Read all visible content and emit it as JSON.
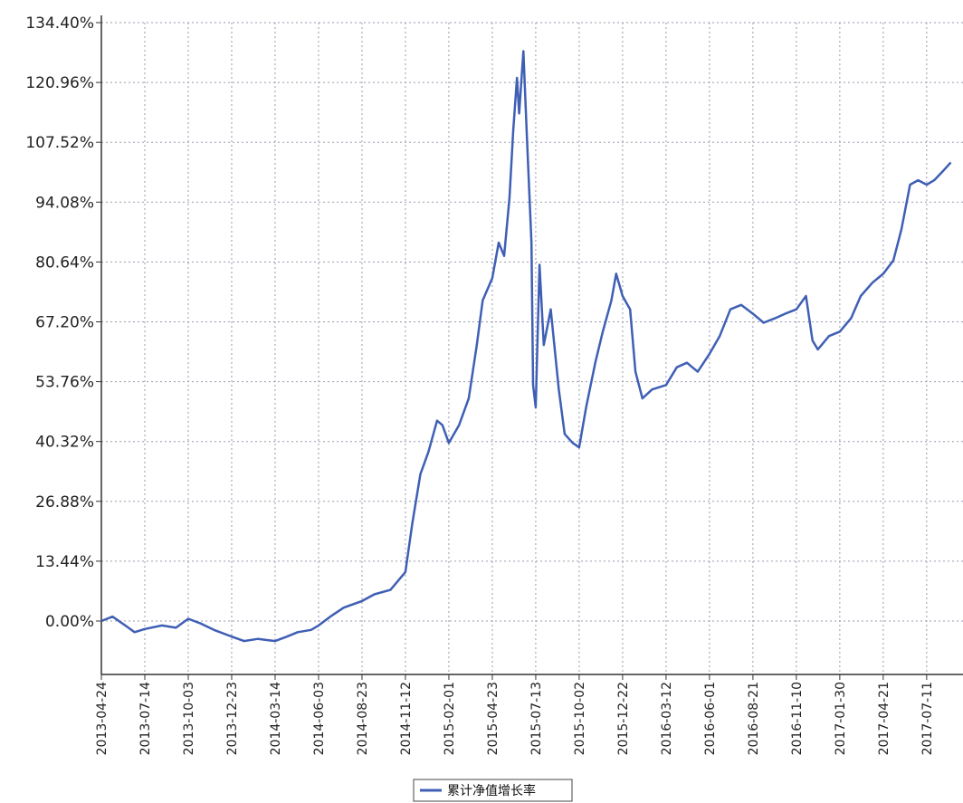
{
  "chart_data": {
    "type": "line",
    "title": "",
    "xlabel": "",
    "ylabel": "",
    "ylim": [
      -12,
      134.4
    ],
    "y_ticks": [
      "134.40%",
      "120.96%",
      "107.52%",
      "94.08%",
      "80.64%",
      "67.20%",
      "53.76%",
      "40.32%",
      "26.88%",
      "13.44%",
      "0.00%"
    ],
    "x_ticks": [
      "2013-04-24",
      "2013-07-14",
      "2013-10-03",
      "2013-12-23",
      "2014-03-14",
      "2014-06-03",
      "2014-08-23",
      "2014-11-12",
      "2015-02-01",
      "2015-04-23",
      "2015-07-13",
      "2015-10-02",
      "2015-12-22",
      "2016-03-12",
      "2016-06-01",
      "2016-08-21",
      "2016-11-10",
      "2017-01-30",
      "2017-04-21",
      "2017-07-11"
    ],
    "grid": true,
    "legend_position": "bottom-center",
    "colors": {
      "line": "#3f5fb5",
      "grid": "#9a9ab0",
      "axis": "#333333"
    },
    "series": [
      {
        "name": "累计净值增长率",
        "x": [
          "2013-04-24",
          "2013-05-15",
          "2013-06-10",
          "2013-06-25",
          "2013-07-14",
          "2013-08-15",
          "2013-09-10",
          "2013-10-03",
          "2013-10-25",
          "2013-11-20",
          "2013-12-23",
          "2014-01-15",
          "2014-02-10",
          "2014-03-14",
          "2014-04-05",
          "2014-04-25",
          "2014-05-20",
          "2014-06-03",
          "2014-06-25",
          "2014-07-20",
          "2014-08-23",
          "2014-09-15",
          "2014-10-15",
          "2014-11-12",
          "2014-11-25",
          "2014-12-10",
          "2014-12-25",
          "2015-01-10",
          "2015-01-20",
          "2015-02-01",
          "2015-02-20",
          "2015-03-10",
          "2015-03-25",
          "2015-04-05",
          "2015-04-23",
          "2015-05-05",
          "2015-05-15",
          "2015-05-25",
          "2015-06-01",
          "2015-06-08",
          "2015-06-12",
          "2015-06-20",
          "2015-06-26",
          "2015-07-05",
          "2015-07-08",
          "2015-07-13",
          "2015-07-20",
          "2015-07-28",
          "2015-08-10",
          "2015-08-25",
          "2015-09-05",
          "2015-09-20",
          "2015-10-02",
          "2015-10-15",
          "2015-11-01",
          "2015-11-15",
          "2015-12-01",
          "2015-12-10",
          "2015-12-22",
          "2016-01-05",
          "2016-01-15",
          "2016-01-28",
          "2016-02-15",
          "2016-03-12",
          "2016-04-01",
          "2016-04-20",
          "2016-05-10",
          "2016-06-01",
          "2016-06-20",
          "2016-07-10",
          "2016-07-30",
          "2016-08-21",
          "2016-09-10",
          "2016-10-01",
          "2016-10-20",
          "2016-11-10",
          "2016-11-28",
          "2016-12-10",
          "2016-12-20",
          "2017-01-10",
          "2017-01-30",
          "2017-02-20",
          "2017-03-10",
          "2017-04-01",
          "2017-04-21",
          "2017-05-10",
          "2017-05-25",
          "2017-06-10",
          "2017-06-25",
          "2017-07-11",
          "2017-07-25",
          "2017-08-10",
          "2017-08-25"
        ],
        "values": [
          0.0,
          1.0,
          -1.2,
          -2.5,
          -1.8,
          -1.0,
          -1.5,
          0.5,
          -0.5,
          -2.0,
          -3.5,
          -4.5,
          -4.0,
          -4.5,
          -3.5,
          -2.5,
          -2.0,
          -1.0,
          1.0,
          3.0,
          4.5,
          6.0,
          7.0,
          11.0,
          22.0,
          33.0,
          38.0,
          45.0,
          44.0,
          40.0,
          44.0,
          50.0,
          62.0,
          72.0,
          77.0,
          85.0,
          82.0,
          95.0,
          110.0,
          122.0,
          114.0,
          128.0,
          110.0,
          85.0,
          53.0,
          48.0,
          80.0,
          62.0,
          70.0,
          52.0,
          42.0,
          40.0,
          39.0,
          48.0,
          58.0,
          65.0,
          72.0,
          78.0,
          73.0,
          70.0,
          56.0,
          50.0,
          52.0,
          53.0,
          57.0,
          58.0,
          56.0,
          60.0,
          64.0,
          70.0,
          71.0,
          69.0,
          67.0,
          68.0,
          69.0,
          70.0,
          73.0,
          63.0,
          61.0,
          64.0,
          65.0,
          68.0,
          73.0,
          76.0,
          78.0,
          81.0,
          88.0,
          98.0,
          99.0,
          98.0,
          99.0,
          101.0,
          103.0
        ]
      }
    ]
  }
}
